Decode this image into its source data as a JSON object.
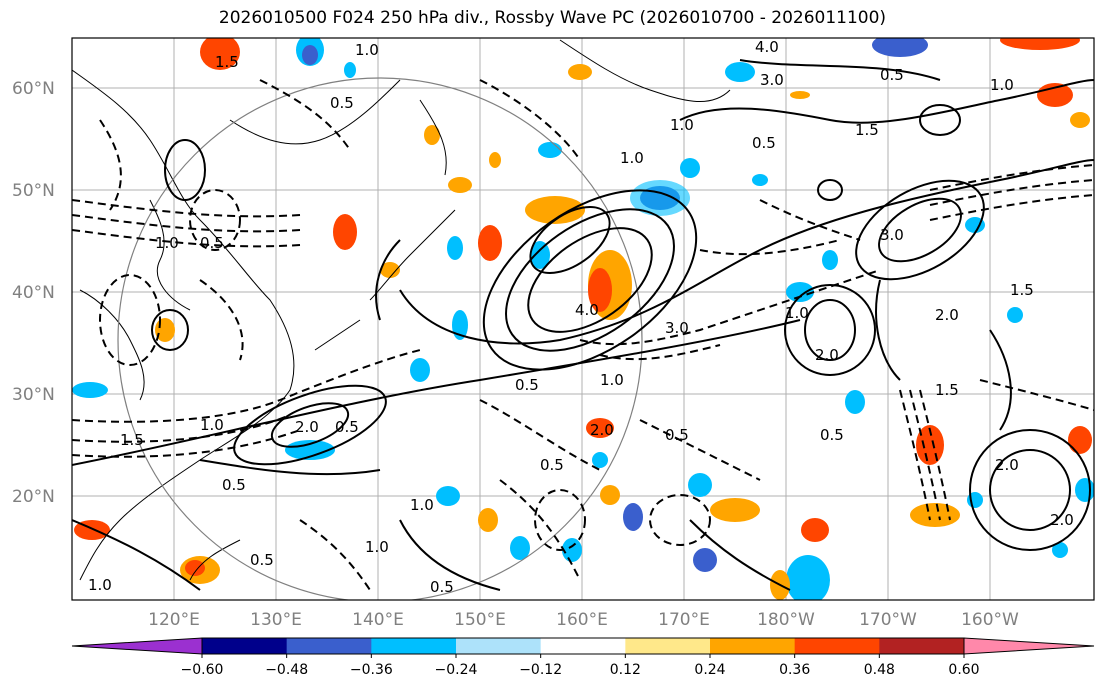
{
  "title": "2026010500 F024 250 hPa div., Rossby Wave PC (2026010700 - 2026011100)",
  "lat_labels": [
    "60°N",
    "50°N",
    "40°N",
    "30°N",
    "20°N"
  ],
  "lon_labels": [
    "120°E",
    "130°E",
    "140°E",
    "150°E",
    "160°E",
    "170°E",
    "180°W",
    "170°W",
    "160°W"
  ],
  "colorbar": {
    "colors": [
      "#9b30d0",
      "#00008b",
      "#3a5fcd",
      "#00bfff",
      "#ade2fa",
      "#ffffff",
      "#ffe88a",
      "#ffa500",
      "#ff4500",
      "#b22222",
      "#ff88aa"
    ],
    "tick_labels": [
      "−0.60",
      "−0.48",
      "−0.36",
      "−0.24",
      "−0.12",
      "0.12",
      "0.24",
      "0.36",
      "0.48",
      "0.60"
    ]
  },
  "contour_labels": [
    "1.0",
    "0.5",
    "1.5",
    "2.0",
    "3.0",
    "4.0",
    "0.5",
    "1.0",
    "2.0",
    "1.5",
    "0.5",
    "1.0",
    "3.0",
    "2.0",
    "1.0",
    "4.0",
    "3.0",
    "2.0",
    "1.5",
    "1.0",
    "0.5",
    "2.0",
    "0.5",
    "1.0",
    "0.5",
    "1.0",
    "2.0",
    "0.5",
    "1.0",
    "1.5",
    "0.5",
    "1.0",
    "2.0",
    "0.5"
  ]
}
